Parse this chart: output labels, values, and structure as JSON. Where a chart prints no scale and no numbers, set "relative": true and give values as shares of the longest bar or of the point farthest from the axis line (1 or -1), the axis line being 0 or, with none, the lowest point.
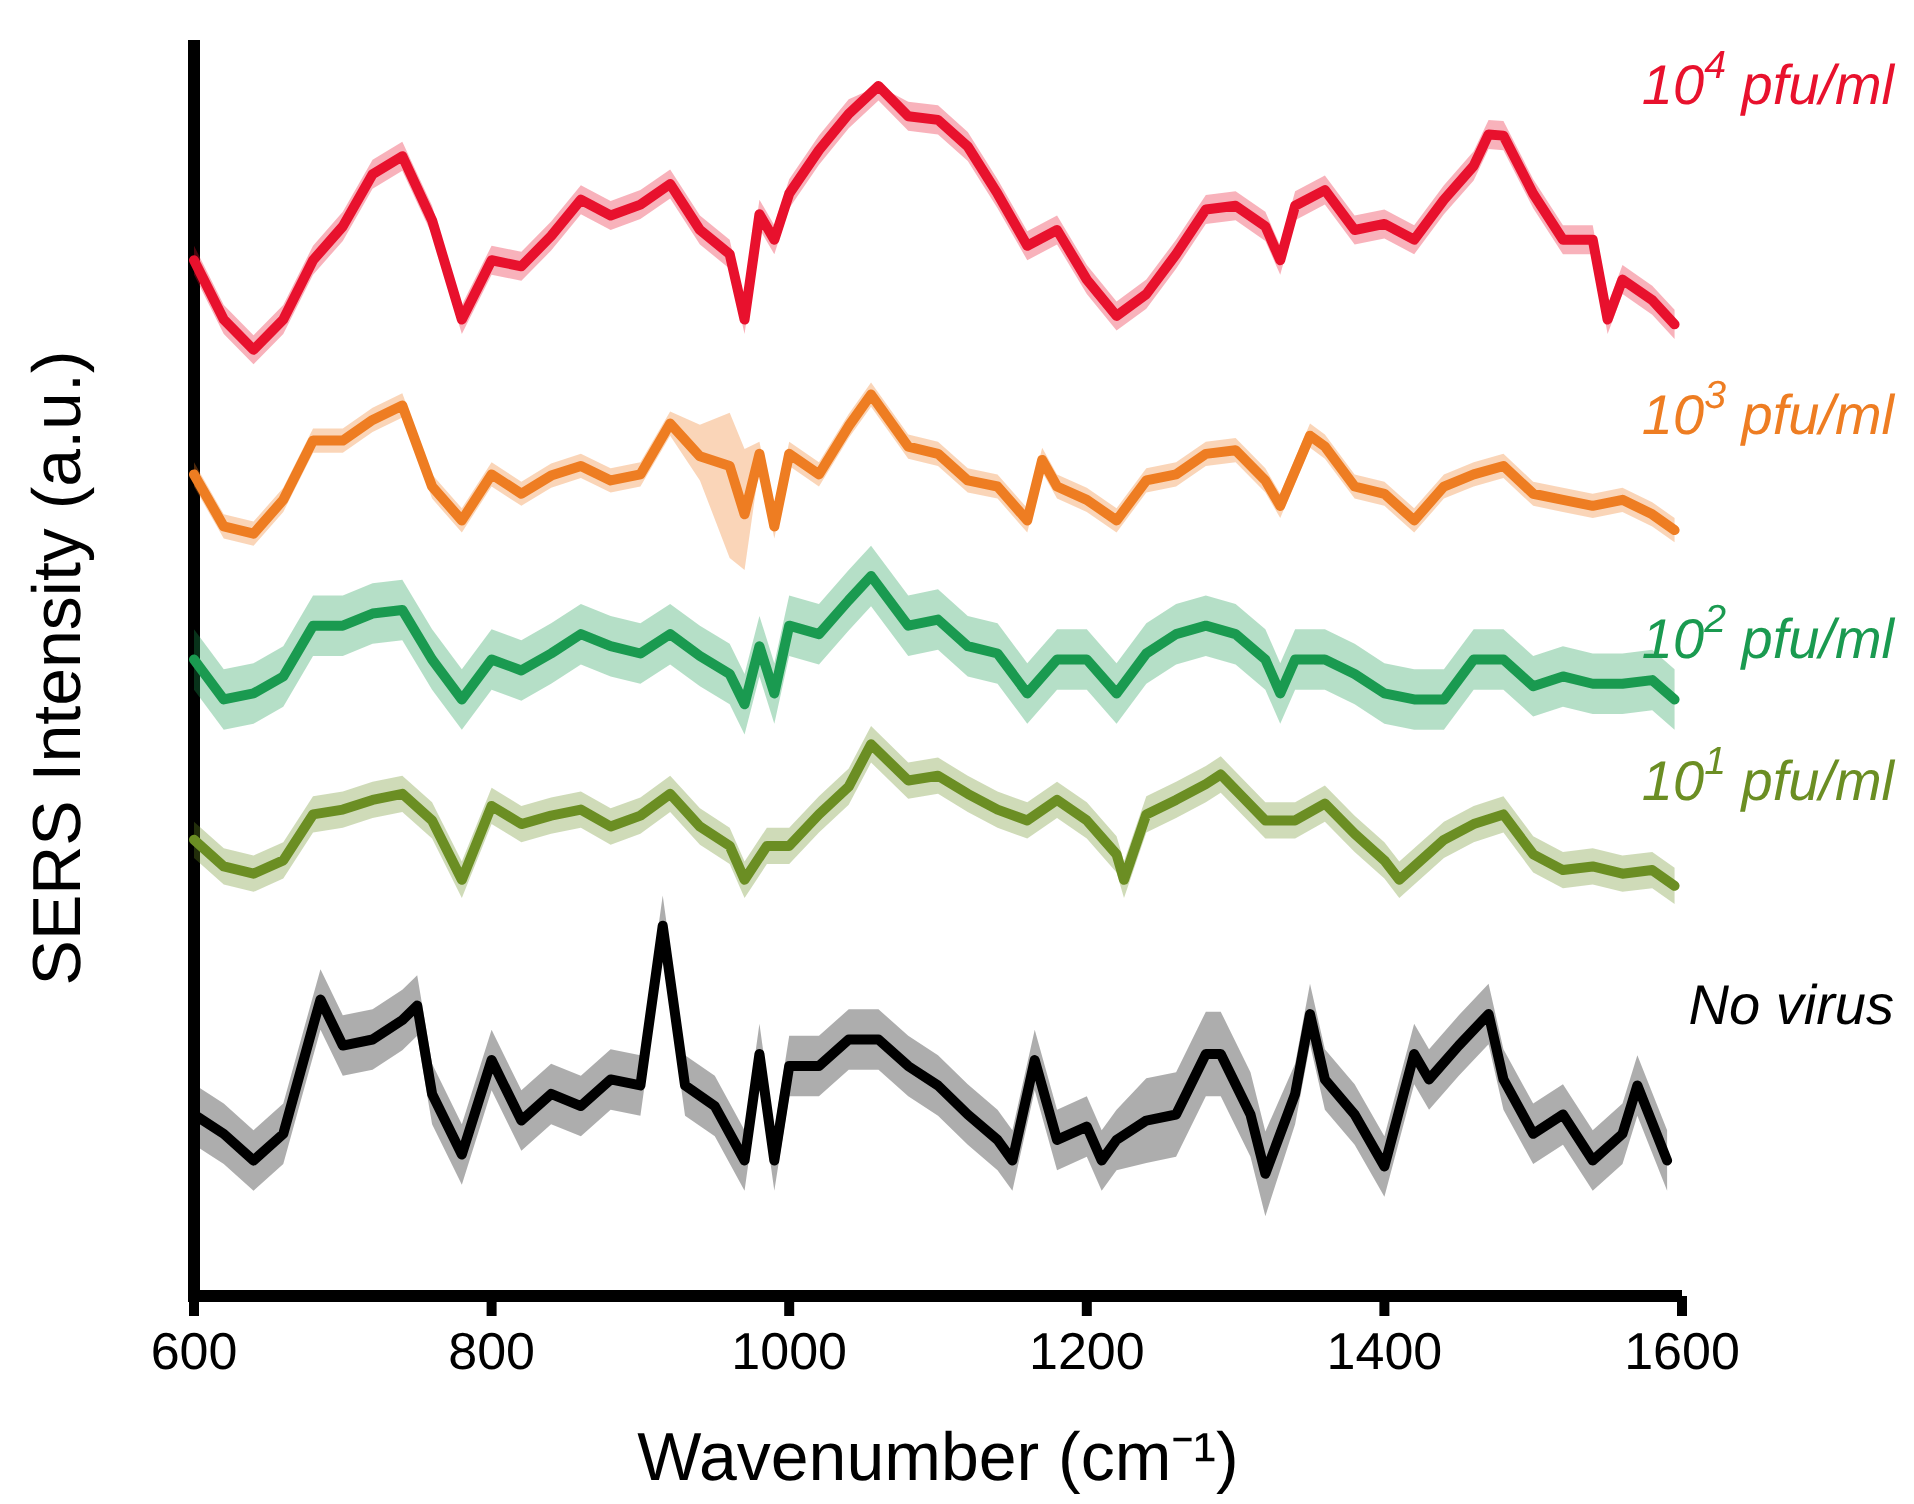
{
  "chart_data": {
    "type": "line",
    "relative": true,
    "xlabel": "Wavenumber (cm⁻¹)",
    "ylabel": "SERS Intensity (a.u.)",
    "xlim": [
      600,
      1600
    ],
    "xticks": [
      600,
      800,
      1000,
      1200,
      1400,
      1600
    ],
    "line_style": "solid",
    "marker": "none",
    "series": [
      {
        "name": "10$^{4}$ pfu/ml",
        "color": "#e8112d",
        "x": [
          600,
          620,
          640,
          660,
          680,
          700,
          720,
          740,
          760,
          780,
          800,
          820,
          840,
          860,
          880,
          900,
          920,
          940,
          960,
          970,
          980,
          990,
          1000,
          1020,
          1040,
          1060,
          1080,
          1100,
          1120,
          1140,
          1160,
          1180,
          1200,
          1220,
          1240,
          1260,
          1280,
          1300,
          1320,
          1330,
          1340,
          1360,
          1380,
          1400,
          1420,
          1440,
          1460,
          1470,
          1480,
          1500,
          1520,
          1540,
          1550,
          1560,
          1580,
          1595
        ],
        "values": [
          0.856,
          0.807,
          0.782,
          0.807,
          0.856,
          0.884,
          0.927,
          0.942,
          0.889,
          0.807,
          0.856,
          0.851,
          0.876,
          0.906,
          0.893,
          0.902,
          0.919,
          0.881,
          0.861,
          0.807,
          0.894,
          0.873,
          0.911,
          0.947,
          0.977,
          1.0,
          0.975,
          0.972,
          0.95,
          0.911,
          0.868,
          0.881,
          0.84,
          0.81,
          0.828,
          0.861,
          0.898,
          0.901,
          0.884,
          0.856,
          0.901,
          0.914,
          0.881,
          0.886,
          0.873,
          0.906,
          0.934,
          0.96,
          0.959,
          0.911,
          0.873,
          0.873,
          0.807,
          0.84,
          0.823,
          0.803
        ],
        "lower": [
          0.844,
          0.795,
          0.77,
          0.795,
          0.844,
          0.872,
          0.915,
          0.93,
          0.877,
          0.795,
          0.844,
          0.839,
          0.864,
          0.894,
          0.881,
          0.89,
          0.907,
          0.869,
          0.849,
          0.795,
          0.882,
          0.861,
          0.899,
          0.935,
          0.965,
          0.988,
          0.963,
          0.96,
          0.938,
          0.899,
          0.856,
          0.869,
          0.828,
          0.798,
          0.816,
          0.849,
          0.886,
          0.889,
          0.872,
          0.844,
          0.889,
          0.902,
          0.869,
          0.874,
          0.861,
          0.894,
          0.922,
          0.948,
          0.947,
          0.899,
          0.861,
          0.861,
          0.795,
          0.828,
          0.811,
          0.791
        ],
        "upper": [
          0.868,
          0.819,
          0.794,
          0.819,
          0.868,
          0.896,
          0.939,
          0.954,
          0.901,
          0.819,
          0.868,
          0.863,
          0.888,
          0.918,
          0.905,
          0.914,
          0.931,
          0.893,
          0.873,
          0.819,
          0.906,
          0.885,
          0.923,
          0.959,
          0.989,
          1.0,
          0.987,
          0.984,
          0.962,
          0.923,
          0.88,
          0.893,
          0.852,
          0.822,
          0.84,
          0.873,
          0.91,
          0.913,
          0.896,
          0.868,
          0.913,
          0.926,
          0.893,
          0.898,
          0.885,
          0.918,
          0.946,
          0.972,
          0.971,
          0.923,
          0.885,
          0.885,
          0.819,
          0.852,
          0.835,
          0.815
        ]
      },
      {
        "name": "10$^{3}$ pfu/ml",
        "color": "#ee7d22",
        "x": [
          600,
          620,
          640,
          660,
          680,
          700,
          720,
          740,
          760,
          780,
          800,
          820,
          840,
          860,
          880,
          900,
          920,
          940,
          960,
          970,
          980,
          990,
          1000,
          1020,
          1040,
          1055,
          1080,
          1100,
          1120,
          1140,
          1160,
          1170,
          1180,
          1200,
          1220,
          1240,
          1260,
          1280,
          1300,
          1320,
          1330,
          1350,
          1360,
          1380,
          1400,
          1420,
          1440,
          1460,
          1480,
          1500,
          1520,
          1540,
          1560,
          1580,
          1595
        ],
        "values": [
          0.679,
          0.636,
          0.63,
          0.658,
          0.707,
          0.707,
          0.724,
          0.736,
          0.669,
          0.641,
          0.679,
          0.663,
          0.678,
          0.686,
          0.674,
          0.679,
          0.721,
          0.694,
          0.686,
          0.646,
          0.696,
          0.636,
          0.696,
          0.679,
          0.719,
          0.745,
          0.702,
          0.696,
          0.674,
          0.669,
          0.641,
          0.691,
          0.669,
          0.658,
          0.641,
          0.674,
          0.679,
          0.696,
          0.699,
          0.674,
          0.653,
          0.711,
          0.702,
          0.669,
          0.663,
          0.641,
          0.669,
          0.679,
          0.686,
          0.663,
          0.658,
          0.653,
          0.658,
          0.646,
          0.633
        ],
        "lower": [
          0.669,
          0.626,
          0.62,
          0.648,
          0.697,
          0.697,
          0.714,
          0.726,
          0.659,
          0.631,
          0.669,
          0.653,
          0.668,
          0.676,
          0.664,
          0.669,
          0.711,
          0.674,
          0.61,
          0.6,
          0.686,
          0.626,
          0.686,
          0.669,
          0.709,
          0.735,
          0.692,
          0.686,
          0.664,
          0.659,
          0.631,
          0.681,
          0.659,
          0.648,
          0.631,
          0.664,
          0.669,
          0.686,
          0.689,
          0.664,
          0.643,
          0.701,
          0.692,
          0.659,
          0.653,
          0.631,
          0.659,
          0.669,
          0.676,
          0.653,
          0.648,
          0.643,
          0.648,
          0.636,
          0.623
        ],
        "upper": [
          0.689,
          0.646,
          0.64,
          0.668,
          0.717,
          0.717,
          0.734,
          0.746,
          0.679,
          0.651,
          0.689,
          0.673,
          0.688,
          0.696,
          0.684,
          0.689,
          0.731,
          0.72,
          0.73,
          0.7,
          0.706,
          0.646,
          0.706,
          0.689,
          0.729,
          0.755,
          0.712,
          0.706,
          0.684,
          0.679,
          0.651,
          0.701,
          0.679,
          0.668,
          0.651,
          0.684,
          0.689,
          0.706,
          0.709,
          0.684,
          0.663,
          0.721,
          0.712,
          0.679,
          0.673,
          0.651,
          0.679,
          0.689,
          0.696,
          0.673,
          0.668,
          0.663,
          0.668,
          0.656,
          0.643
        ]
      },
      {
        "name": "10$^{2}$ pfu/ml",
        "color": "#1a9a50",
        "x": [
          600,
          620,
          640,
          660,
          680,
          700,
          720,
          740,
          760,
          780,
          800,
          820,
          840,
          860,
          880,
          900,
          920,
          940,
          960,
          970,
          980,
          990,
          1000,
          1020,
          1040,
          1055,
          1080,
          1100,
          1120,
          1140,
          1160,
          1180,
          1200,
          1220,
          1240,
          1260,
          1280,
          1300,
          1320,
          1330,
          1340,
          1360,
          1380,
          1400,
          1420,
          1440,
          1460,
          1480,
          1500,
          1520,
          1540,
          1560,
          1580,
          1595
        ],
        "values": [
          0.526,
          0.493,
          0.498,
          0.512,
          0.554,
          0.554,
          0.564,
          0.567,
          0.526,
          0.493,
          0.526,
          0.517,
          0.531,
          0.547,
          0.537,
          0.531,
          0.547,
          0.529,
          0.514,
          0.489,
          0.537,
          0.498,
          0.554,
          0.547,
          0.575,
          0.595,
          0.554,
          0.559,
          0.537,
          0.531,
          0.498,
          0.526,
          0.526,
          0.498,
          0.531,
          0.547,
          0.554,
          0.547,
          0.526,
          0.498,
          0.526,
          0.526,
          0.514,
          0.498,
          0.493,
          0.493,
          0.526,
          0.526,
          0.504,
          0.512,
          0.506,
          0.506,
          0.509,
          0.493
        ],
        "lower": [
          0.501,
          0.468,
          0.473,
          0.487,
          0.529,
          0.529,
          0.539,
          0.542,
          0.501,
          0.468,
          0.501,
          0.492,
          0.506,
          0.522,
          0.512,
          0.506,
          0.522,
          0.504,
          0.489,
          0.464,
          0.512,
          0.473,
          0.529,
          0.522,
          0.55,
          0.57,
          0.529,
          0.534,
          0.512,
          0.506,
          0.473,
          0.501,
          0.501,
          0.473,
          0.506,
          0.522,
          0.529,
          0.522,
          0.501,
          0.473,
          0.501,
          0.501,
          0.489,
          0.473,
          0.468,
          0.468,
          0.501,
          0.501,
          0.479,
          0.487,
          0.481,
          0.481,
          0.484,
          0.468
        ],
        "upper": [
          0.551,
          0.518,
          0.523,
          0.537,
          0.579,
          0.579,
          0.589,
          0.592,
          0.551,
          0.518,
          0.551,
          0.542,
          0.556,
          0.572,
          0.562,
          0.556,
          0.572,
          0.554,
          0.539,
          0.514,
          0.562,
          0.523,
          0.579,
          0.572,
          0.6,
          0.62,
          0.579,
          0.584,
          0.562,
          0.556,
          0.523,
          0.551,
          0.551,
          0.523,
          0.556,
          0.572,
          0.579,
          0.572,
          0.551,
          0.523,
          0.551,
          0.551,
          0.539,
          0.523,
          0.518,
          0.518,
          0.551,
          0.551,
          0.529,
          0.537,
          0.531,
          0.531,
          0.534,
          0.518
        ]
      },
      {
        "name": "10$^{1}$ pfu/ml",
        "color": "#6b8e23",
        "x": [
          600,
          620,
          640,
          660,
          680,
          700,
          720,
          740,
          760,
          780,
          800,
          820,
          840,
          860,
          880,
          900,
          920,
          940,
          960,
          970,
          985,
          1000,
          1020,
          1040,
          1055,
          1080,
          1100,
          1120,
          1140,
          1160,
          1180,
          1200,
          1220,
          1225,
          1240,
          1260,
          1280,
          1290,
          1320,
          1340,
          1360,
          1380,
          1400,
          1410,
          1440,
          1460,
          1480,
          1500,
          1520,
          1540,
          1560,
          1580,
          1595
        ],
        "values": [
          0.377,
          0.355,
          0.349,
          0.36,
          0.398,
          0.402,
          0.41,
          0.415,
          0.393,
          0.344,
          0.405,
          0.39,
          0.397,
          0.402,
          0.388,
          0.397,
          0.415,
          0.388,
          0.372,
          0.344,
          0.372,
          0.372,
          0.398,
          0.421,
          0.456,
          0.426,
          0.43,
          0.415,
          0.402,
          0.393,
          0.41,
          0.393,
          0.365,
          0.344,
          0.398,
          0.41,
          0.423,
          0.431,
          0.393,
          0.393,
          0.407,
          0.382,
          0.36,
          0.344,
          0.377,
          0.39,
          0.398,
          0.365,
          0.352,
          0.355,
          0.349,
          0.352,
          0.339
        ],
        "lower": [
          0.362,
          0.34,
          0.334,
          0.345,
          0.383,
          0.387,
          0.395,
          0.4,
          0.378,
          0.329,
          0.39,
          0.375,
          0.382,
          0.387,
          0.373,
          0.382,
          0.4,
          0.373,
          0.357,
          0.329,
          0.357,
          0.357,
          0.383,
          0.406,
          0.441,
          0.411,
          0.415,
          0.4,
          0.387,
          0.378,
          0.395,
          0.378,
          0.35,
          0.329,
          0.383,
          0.395,
          0.408,
          0.416,
          0.378,
          0.378,
          0.392,
          0.367,
          0.345,
          0.329,
          0.362,
          0.375,
          0.383,
          0.35,
          0.337,
          0.34,
          0.334,
          0.337,
          0.324
        ],
        "upper": [
          0.392,
          0.37,
          0.364,
          0.375,
          0.413,
          0.417,
          0.425,
          0.43,
          0.408,
          0.359,
          0.42,
          0.405,
          0.412,
          0.417,
          0.403,
          0.412,
          0.43,
          0.403,
          0.387,
          0.359,
          0.387,
          0.387,
          0.413,
          0.436,
          0.471,
          0.441,
          0.445,
          0.43,
          0.417,
          0.408,
          0.425,
          0.408,
          0.38,
          0.359,
          0.413,
          0.425,
          0.438,
          0.446,
          0.408,
          0.408,
          0.422,
          0.397,
          0.375,
          0.359,
          0.392,
          0.405,
          0.413,
          0.38,
          0.367,
          0.37,
          0.364,
          0.367,
          0.354
        ]
      },
      {
        "name": "No virus",
        "color": "#000000",
        "x": [
          600,
          620,
          640,
          660,
          680,
          685,
          700,
          720,
          740,
          750,
          760,
          780,
          800,
          820,
          840,
          860,
          880,
          900,
          915,
          930,
          950,
          970,
          980,
          990,
          1000,
          1020,
          1040,
          1060,
          1080,
          1100,
          1120,
          1140,
          1150,
          1165,
          1180,
          1200,
          1210,
          1220,
          1240,
          1260,
          1280,
          1290,
          1310,
          1320,
          1340,
          1350,
          1360,
          1380,
          1400,
          1420,
          1430,
          1450,
          1470,
          1480,
          1500,
          1520,
          1540,
          1560,
          1570,
          1590
        ],
        "values": [
          0.15,
          0.134,
          0.112,
          0.134,
          0.223,
          0.245,
          0.207,
          0.212,
          0.228,
          0.24,
          0.167,
          0.117,
          0.195,
          0.145,
          0.167,
          0.157,
          0.179,
          0.174,
          0.306,
          0.174,
          0.157,
          0.112,
          0.2,
          0.112,
          0.19,
          0.19,
          0.212,
          0.212,
          0.19,
          0.174,
          0.15,
          0.129,
          0.112,
          0.195,
          0.129,
          0.14,
          0.112,
          0.129,
          0.145,
          0.15,
          0.2,
          0.2,
          0.15,
          0.101,
          0.167,
          0.233,
          0.179,
          0.15,
          0.107,
          0.2,
          0.179,
          0.207,
          0.233,
          0.179,
          0.134,
          0.15,
          0.112,
          0.134,
          0.174,
          0.112
        ],
        "lower": [
          0.125,
          0.109,
          0.087,
          0.109,
          0.198,
          0.22,
          0.182,
          0.187,
          0.203,
          0.215,
          0.142,
          0.092,
          0.17,
          0.12,
          0.142,
          0.132,
          0.154,
          0.149,
          0.281,
          0.149,
          0.132,
          0.087,
          0.175,
          0.087,
          0.165,
          0.165,
          0.187,
          0.187,
          0.165,
          0.149,
          0.125,
          0.104,
          0.087,
          0.17,
          0.104,
          0.115,
          0.087,
          0.104,
          0.11,
          0.115,
          0.165,
          0.165,
          0.115,
          0.066,
          0.142,
          0.208,
          0.154,
          0.125,
          0.082,
          0.175,
          0.154,
          0.182,
          0.208,
          0.154,
          0.109,
          0.125,
          0.087,
          0.109,
          0.149,
          0.087
        ],
        "upper": [
          0.175,
          0.159,
          0.137,
          0.159,
          0.248,
          0.27,
          0.232,
          0.237,
          0.253,
          0.265,
          0.192,
          0.142,
          0.22,
          0.17,
          0.192,
          0.182,
          0.204,
          0.199,
          0.331,
          0.199,
          0.182,
          0.137,
          0.225,
          0.137,
          0.215,
          0.215,
          0.237,
          0.237,
          0.215,
          0.199,
          0.175,
          0.154,
          0.137,
          0.22,
          0.154,
          0.165,
          0.137,
          0.154,
          0.18,
          0.185,
          0.235,
          0.235,
          0.185,
          0.136,
          0.192,
          0.258,
          0.204,
          0.175,
          0.132,
          0.225,
          0.204,
          0.232,
          0.258,
          0.204,
          0.159,
          0.175,
          0.137,
          0.159,
          0.199,
          0.137
        ]
      }
    ]
  }
}
